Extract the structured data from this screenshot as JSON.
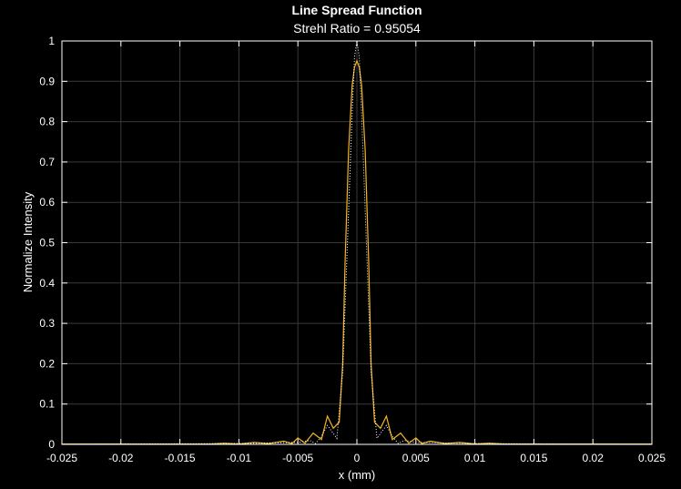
{
  "chart_data": {
    "type": "line",
    "title": "Line Spread Function",
    "subtitle": "Strehl Ratio = 0.95054",
    "xlabel": "x (mm)",
    "ylabel": "Normalize Intensity",
    "xlim": [
      -0.025,
      0.025
    ],
    "ylim": [
      0,
      1
    ],
    "xticks": [
      "-0.025",
      "-0.02",
      "-0.015",
      "-0.01",
      "-0.005",
      "0",
      "0.005",
      "0.01",
      "0.015",
      "0.02",
      "0.025"
    ],
    "yticks": [
      "0",
      "0.1",
      "0.2",
      "0.3",
      "0.4",
      "0.5",
      "0.6",
      "0.7",
      "0.8",
      "0.9",
      "1"
    ],
    "grid": true,
    "colors": {
      "background": "#000000",
      "axes": "#ffffff",
      "grid": "#3a3a3a",
      "series_solid": "#f5b51d",
      "series_dotted": "#ffffff"
    },
    "series": [
      {
        "style": "solid",
        "x": [
          -0.025,
          -0.0125,
          -0.0112,
          -0.01,
          -0.0087,
          -0.0075,
          -0.0062,
          -0.0055,
          -0.005,
          -0.0044,
          -0.0037,
          -0.003,
          -0.0025,
          -0.002,
          -0.0015,
          -0.0012,
          -0.001,
          -0.0007,
          -0.0004,
          -0.0002,
          0,
          0.0002,
          0.0004,
          0.0007,
          0.001,
          0.0012,
          0.0015,
          0.002,
          0.0025,
          0.003,
          0.0037,
          0.0044,
          0.005,
          0.0055,
          0.0062,
          0.0075,
          0.0087,
          0.01,
          0.0112,
          0.0125,
          0.025
        ],
        "y": [
          0.001,
          0.001,
          0.003,
          0.001,
          0.005,
          0.002,
          0.008,
          0.002,
          0.016,
          0.003,
          0.028,
          0.012,
          0.07,
          0.04,
          0.055,
          0.2,
          0.45,
          0.73,
          0.89,
          0.935,
          0.951,
          0.935,
          0.89,
          0.73,
          0.45,
          0.2,
          0.055,
          0.04,
          0.07,
          0.012,
          0.028,
          0.003,
          0.016,
          0.002,
          0.008,
          0.002,
          0.005,
          0.001,
          0.003,
          0.001,
          0.001
        ]
      },
      {
        "style": "dotted",
        "x": [
          -0.025,
          -0.01,
          -0.005,
          -0.004,
          -0.0035,
          -0.003,
          -0.0025,
          -0.0022,
          -0.0017,
          -0.0012,
          -0.0008,
          -0.0004,
          -0.0002,
          0,
          0.0002,
          0.0004,
          0.0008,
          0.0012,
          0.0017,
          0.0022,
          0.0025,
          0.003,
          0.0035,
          0.004,
          0.005,
          0.01,
          0.025
        ],
        "y": [
          0,
          0.002,
          0.005,
          0.01,
          0.002,
          0.02,
          0.047,
          0.035,
          0.015,
          0.18,
          0.5,
          0.82,
          0.96,
          1,
          0.96,
          0.82,
          0.5,
          0.18,
          0.015,
          0.035,
          0.047,
          0.02,
          0.002,
          0.01,
          0.005,
          0.002,
          0
        ]
      }
    ]
  }
}
